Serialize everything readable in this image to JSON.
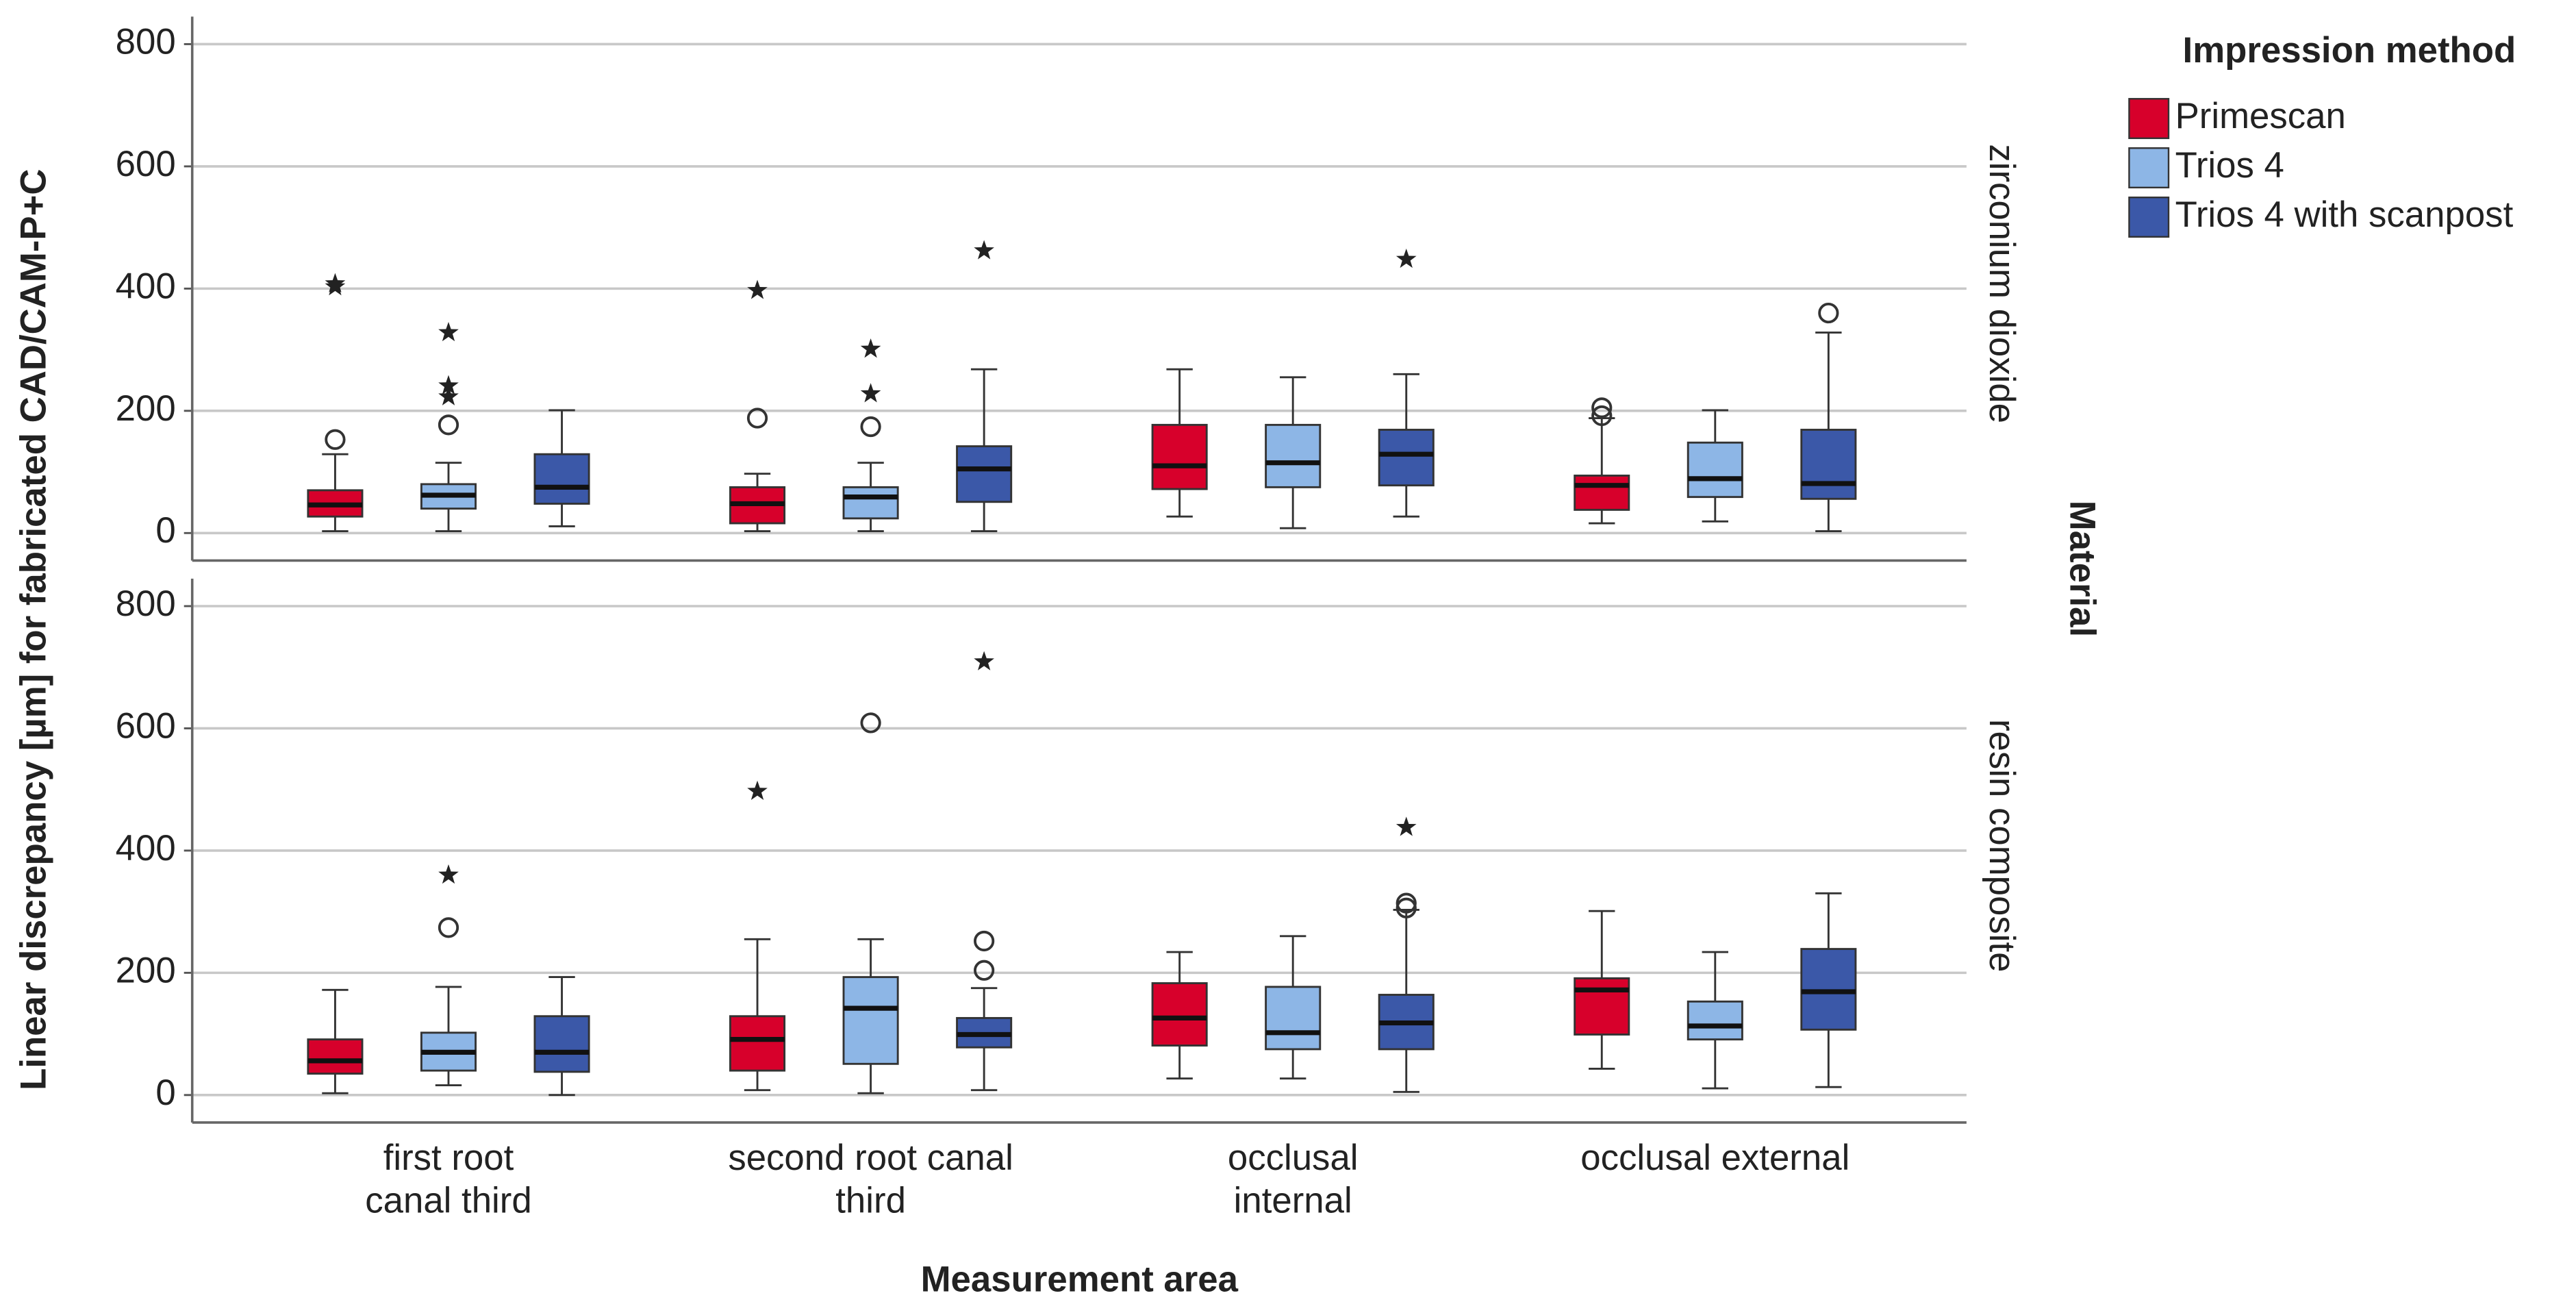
{
  "chart_data": {
    "type": "box",
    "y_label": "Linear discrepancy [µm] for fabricated CAD/CAM-P+C",
    "x_label": "Measurement area",
    "legend_title": "Impression method",
    "facet_label": "Material",
    "categories": [
      "first root\ncanal third",
      "second root canal\nthird",
      "occlusal\ninternal",
      "occlusal external"
    ],
    "series": [
      {
        "name": "Primescan",
        "color": "#d7002b"
      },
      {
        "name": "Trios 4",
        "color": "#8db6e6"
      },
      {
        "name": "Trios 4 with scanpost",
        "color": "#3b58a8"
      }
    ],
    "grid": true,
    "panels": [
      {
        "name": "zirconium dioxide",
        "ylim": [
          -45,
          845
        ],
        "yticks": [
          0,
          200,
          400,
          600,
          800
        ],
        "data": [
          [
            {
              "min": 3,
              "q1": 27,
              "median": 46,
              "q3": 70,
              "max": 129,
              "outliers": [
                153
              ],
              "extremes": [
                408,
                403
              ]
            },
            {
              "min": 3,
              "q1": 16,
              "median": 48,
              "q3": 75,
              "max": 97,
              "outliers": [
                188
              ],
              "extremes": [
                397
              ]
            },
            {
              "min": 27,
              "q1": 72,
              "median": 110,
              "q3": 177,
              "max": 268,
              "outliers": [],
              "extremes": []
            },
            {
              "min": 16,
              "q1": 38,
              "median": 78,
              "q3": 94,
              "max": 188,
              "outliers": [
                205,
                192
              ],
              "extremes": []
            }
          ],
          [
            {
              "min": 3,
              "q1": 40,
              "median": 62,
              "q3": 80,
              "max": 115,
              "outliers": [
                177
              ],
              "extremes": [
                328,
                241,
                223
              ]
            },
            {
              "min": 3,
              "q1": 24,
              "median": 59,
              "q3": 75,
              "max": 115,
              "outliers": [
                174
              ],
              "extremes": [
                301,
                228
              ]
            },
            {
              "min": 8,
              "q1": 75,
              "median": 115,
              "q3": 177,
              "max": 255,
              "outliers": [],
              "extremes": []
            },
            {
              "min": 19,
              "q1": 59,
              "median": 89,
              "q3": 148,
              "max": 201,
              "outliers": [],
              "extremes": []
            }
          ],
          [
            {
              "min": 11,
              "q1": 48,
              "median": 75,
              "q3": 129,
              "max": 201,
              "outliers": [],
              "extremes": []
            },
            {
              "min": 3,
              "q1": 51,
              "median": 105,
              "q3": 142,
              "max": 268,
              "outliers": [],
              "extremes": [
                462
              ]
            },
            {
              "min": 27,
              "q1": 78,
              "median": 129,
              "q3": 169,
              "max": 260,
              "outliers": [],
              "extremes": [
                448
              ]
            },
            {
              "min": 3,
              "q1": 56,
              "median": 81,
              "q3": 169,
              "max": 328,
              "outliers": [
                360
              ],
              "extremes": []
            }
          ]
        ]
      },
      {
        "name": "resin composite",
        "ylim": [
          -45,
          845
        ],
        "yticks": [
          0,
          200,
          400,
          600,
          800
        ],
        "data": [
          [
            {
              "min": 3,
              "q1": 35,
              "median": 56,
              "q3": 91,
              "max": 172,
              "outliers": [],
              "extremes": []
            },
            {
              "min": 8,
              "q1": 40,
              "median": 91,
              "q3": 129,
              "max": 255,
              "outliers": [],
              "extremes": [
                497
              ]
            },
            {
              "min": 27,
              "q1": 81,
              "median": 126,
              "q3": 183,
              "max": 234,
              "outliers": [],
              "extremes": []
            },
            {
              "min": 43,
              "q1": 99,
              "median": 172,
              "q3": 191,
              "max": 301,
              "outliers": [],
              "extremes": []
            }
          ],
          [
            {
              "min": 16,
              "q1": 40,
              "median": 70,
              "q3": 102,
              "max": 177,
              "outliers": [
                274
              ],
              "extremes": [
                360
              ]
            },
            {
              "min": 3,
              "q1": 51,
              "median": 142,
              "q3": 193,
              "max": 255,
              "outliers": [
                609
              ],
              "extremes": []
            },
            {
              "min": 27,
              "q1": 75,
              "median": 102,
              "q3": 177,
              "max": 260,
              "outliers": [],
              "extremes": []
            },
            {
              "min": 11,
              "q1": 91,
              "median": 113,
              "q3": 153,
              "max": 234,
              "outliers": [],
              "extremes": []
            }
          ],
          [
            {
              "min": 0,
              "q1": 38,
              "median": 70,
              "q3": 129,
              "max": 193,
              "outliers": [],
              "extremes": []
            },
            {
              "min": 8,
              "q1": 78,
              "median": 99,
              "q3": 126,
              "max": 175,
              "outliers": [
                252,
                204
              ],
              "extremes": [
                709
              ]
            },
            {
              "min": 5,
              "q1": 75,
              "median": 118,
              "q3": 164,
              "max": 303,
              "outliers": [
                314,
                306
              ],
              "extremes": [
                438
              ]
            },
            {
              "min": 13,
              "q1": 107,
              "median": 169,
              "q3": 239,
              "max": 330,
              "outliers": [],
              "extremes": []
            }
          ]
        ]
      }
    ]
  }
}
